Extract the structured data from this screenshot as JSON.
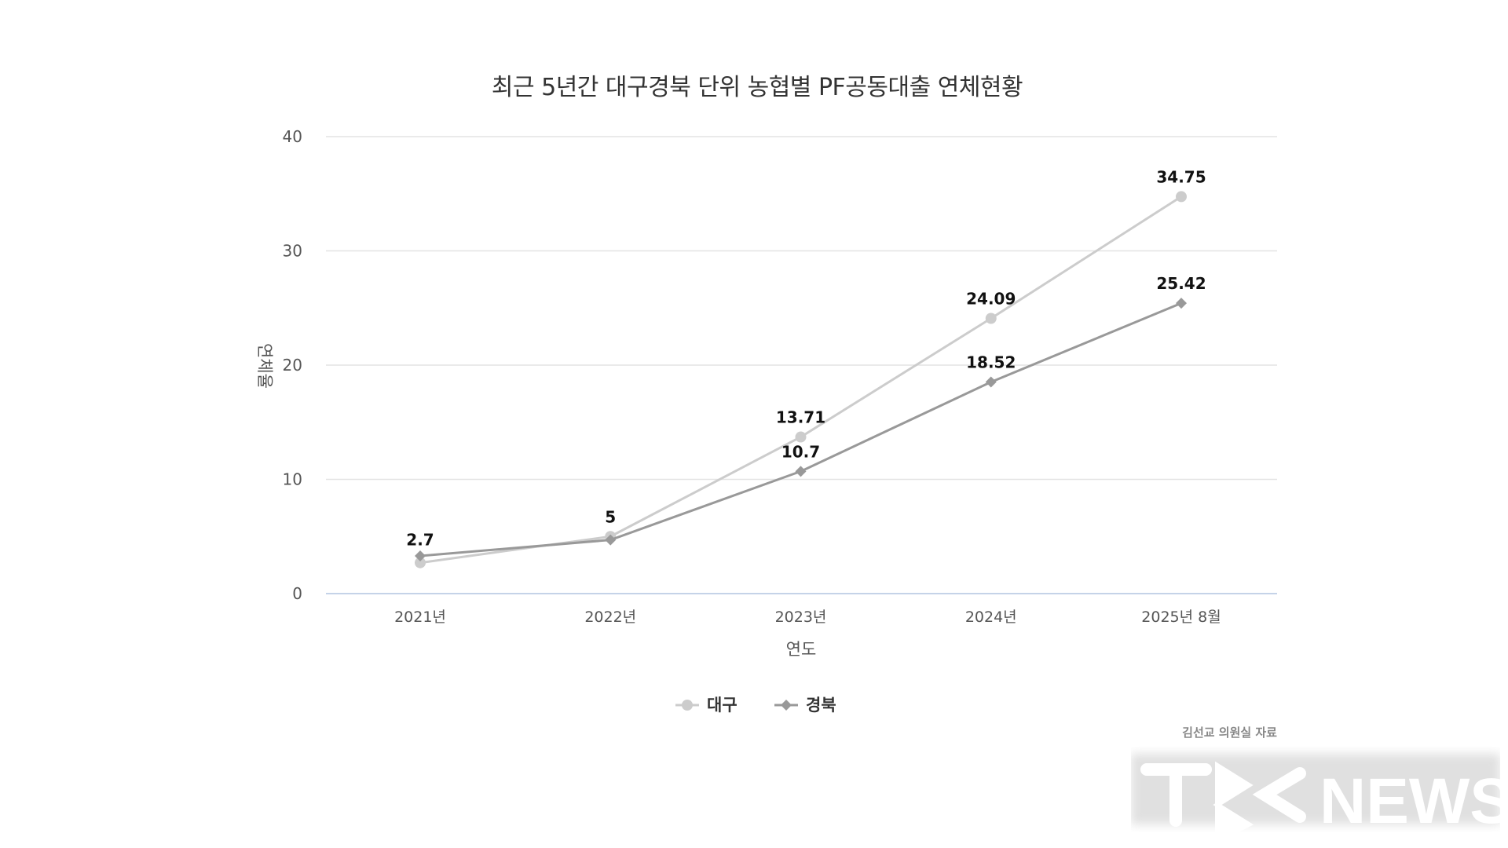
{
  "chart_data": {
    "type": "line",
    "title": "최근 5년간 대구경북 단위 농협별 PF공동대출 연체현황",
    "xlabel": "연도",
    "ylabel": "연체율",
    "categories": [
      "2021년",
      "2022년",
      "2023년",
      "2024년",
      "2025년 8월"
    ],
    "ylim": [
      0,
      40
    ],
    "yticks": [
      "0",
      "10",
      "20",
      "30",
      "40"
    ],
    "ytick_values": [
      0,
      10,
      20,
      30,
      40
    ],
    "grid": true,
    "legend_position": "bottom",
    "series": [
      {
        "name": "대구",
        "color": "#cccccc",
        "marker": "circle",
        "values": [
          2.7,
          5,
          13.71,
          24.09,
          34.75
        ],
        "labels": [
          "2.7",
          "5",
          "13.71",
          "24.09",
          "34.75"
        ]
      },
      {
        "name": "경북",
        "color": "#999999",
        "marker": "diamond",
        "values": [
          3.3,
          4.7,
          10.7,
          18.52,
          25.42
        ],
        "labels": [
          "",
          "",
          "10.7",
          "18.52",
          "25.42"
        ]
      }
    ]
  },
  "source": "김선교 의원실 자료",
  "watermark": "TBC NEWS"
}
